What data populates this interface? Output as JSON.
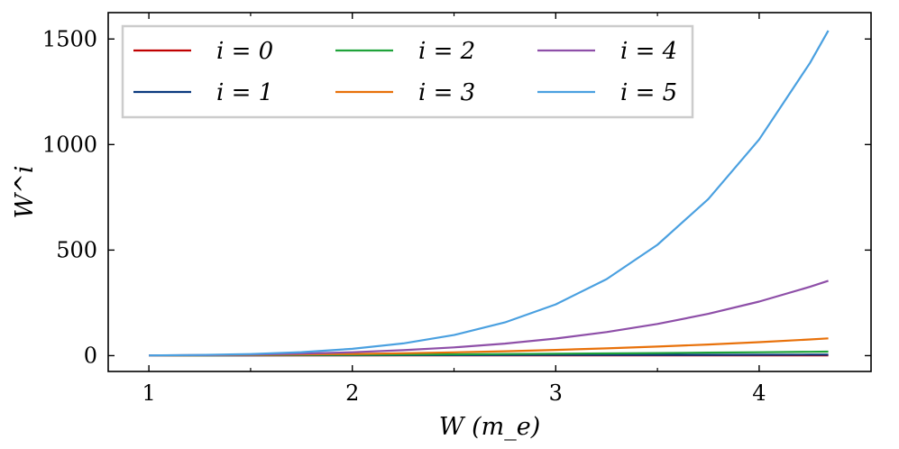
{
  "chart_data": {
    "type": "line",
    "title": "",
    "xlabel": "W (m_e)",
    "ylabel": "W^i",
    "xlim": [
      0.8,
      4.55
    ],
    "ylim": [
      -75,
      1625
    ],
    "grid": false,
    "legend_position": "top-left",
    "x_ticks": [
      {
        "value": 1,
        "label": "1"
      },
      {
        "value": 2,
        "label": "2"
      },
      {
        "value": 3,
        "label": "3"
      },
      {
        "value": 4,
        "label": "4"
      }
    ],
    "y_ticks": [
      {
        "value": 0,
        "label": "0"
      },
      {
        "value": 500,
        "label": "500"
      },
      {
        "value": 1000,
        "label": "1000"
      },
      {
        "value": 1500,
        "label": "1500"
      }
    ],
    "x": [
      1.0,
      1.25,
      1.5,
      1.75,
      2.0,
      2.25,
      2.5,
      2.75,
      3.0,
      3.25,
      3.5,
      3.75,
      4.0,
      4.25,
      4.34
    ],
    "series": [
      {
        "name": "i = 0",
        "color": "#c00000",
        "values": [
          1,
          1,
          1,
          1,
          1,
          1,
          1,
          1,
          1,
          1,
          1,
          1,
          1,
          1,
          1
        ]
      },
      {
        "name": "i = 1",
        "color": "#0b3a7e",
        "values": [
          1.0,
          1.25,
          1.5,
          1.75,
          2.0,
          2.25,
          2.5,
          2.75,
          3.0,
          3.25,
          3.5,
          3.75,
          4.0,
          4.25,
          4.34
        ]
      },
      {
        "name": "i = 2",
        "color": "#1fa33a",
        "values": [
          1.0,
          1.56,
          2.25,
          3.06,
          4.0,
          5.06,
          6.25,
          7.56,
          9.0,
          10.56,
          12.25,
          14.06,
          16.0,
          18.06,
          18.84
        ]
      },
      {
        "name": "i = 3",
        "color": "#e8710a",
        "values": [
          1.0,
          1.95,
          3.38,
          5.36,
          8.0,
          11.39,
          15.63,
          20.8,
          27.0,
          34.33,
          42.88,
          52.73,
          64.0,
          76.77,
          81.75
        ]
      },
      {
        "name": "i = 4",
        "color": "#8e4fa8",
        "values": [
          1.0,
          2.44,
          5.06,
          9.38,
          16.0,
          25.63,
          39.06,
          57.19,
          81.0,
          111.57,
          150.06,
          197.75,
          256.0,
          326.25,
          354.8
        ]
      },
      {
        "name": "i = 5",
        "color": "#4aa0e0",
        "values": [
          1.0,
          3.05,
          7.59,
          16.41,
          32.0,
          57.67,
          97.66,
          157.28,
          243.0,
          362.59,
          525.22,
          741.58,
          1024.0,
          1386.58,
          1539.8
        ]
      }
    ]
  }
}
